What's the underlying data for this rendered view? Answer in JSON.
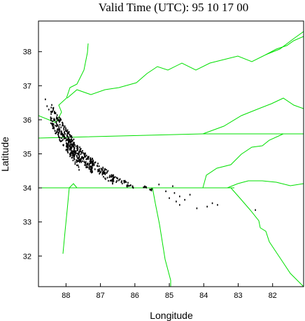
{
  "chart_data": {
    "type": "scatter",
    "title": "Valid Time (UTC):  95 10 17 00",
    "xlabel": "Longitude",
    "ylabel": "Latitude",
    "x_ticks": [
      "88",
      "87",
      "86",
      "85",
      "84",
      "83",
      "82"
    ],
    "y_ticks": [
      "38",
      "37",
      "36",
      "35",
      "34",
      "33",
      "32"
    ],
    "xlim_west_longitude": [
      88.8,
      81.1
    ],
    "ylim_latitude": [
      31.1,
      38.9
    ],
    "grid": false,
    "border_color": "#00e000",
    "marker_color": "#000000",
    "clusters": [
      {
        "lon": [
          88.45,
          87.6
        ],
        "lat": [
          35.0,
          36.5
        ],
        "count": 260
      },
      {
        "lon": [
          88.0,
          87.2
        ],
        "lat": [
          34.7,
          35.6
        ],
        "count": 150
      },
      {
        "lon": [
          87.4,
          86.6
        ],
        "lat": [
          34.3,
          35.0
        ],
        "count": 90
      },
      {
        "lon": [
          86.7,
          86.0
        ],
        "lat": [
          34.05,
          34.4
        ],
        "count": 35
      },
      {
        "lon": [
          85.8,
          85.5
        ],
        "lat": [
          33.95,
          34.1
        ],
        "count": 12
      }
    ],
    "points": [
      [
        88.6,
        36.6
      ],
      [
        88.55,
        36.4
      ],
      [
        88.5,
        36.3
      ],
      [
        86.2,
        34.15
      ],
      [
        85.3,
        34.1
      ],
      [
        84.9,
        34.05
      ],
      [
        85.1,
        33.9
      ],
      [
        84.85,
        33.85
      ],
      [
        84.7,
        33.75
      ],
      [
        84.4,
        33.8
      ],
      [
        84.8,
        33.6
      ],
      [
        84.7,
        33.5
      ],
      [
        84.2,
        33.4
      ],
      [
        83.9,
        33.45
      ],
      [
        83.75,
        33.55
      ],
      [
        83.6,
        33.5
      ],
      [
        82.5,
        33.35
      ],
      [
        85.0,
        33.7
      ],
      [
        84.55,
        33.65
      ]
    ]
  }
}
